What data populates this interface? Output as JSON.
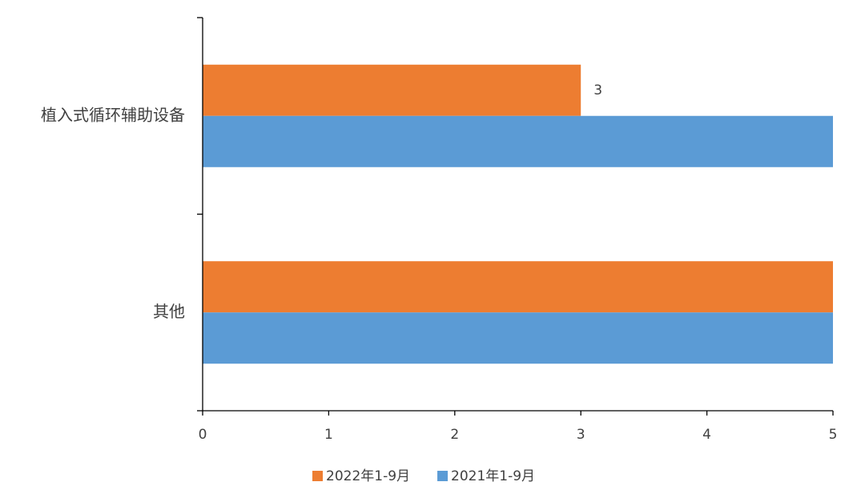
{
  "chart_data": {
    "type": "hbar",
    "categories": [
      "植入式循环辅助设备",
      "其他"
    ],
    "series": [
      {
        "name": "2022年1-9月",
        "color": "#ed7d31",
        "values": [
          3,
          5
        ],
        "value_labels": [
          3,
          null
        ]
      },
      {
        "name": "2021年1-9月",
        "color": "#5b9bd5",
        "values": [
          5,
          5
        ]
      }
    ],
    "xlim": [
      0,
      5
    ],
    "xticks": [
      0,
      1,
      2,
      3,
      4,
      5
    ],
    "legend": "bottom"
  }
}
